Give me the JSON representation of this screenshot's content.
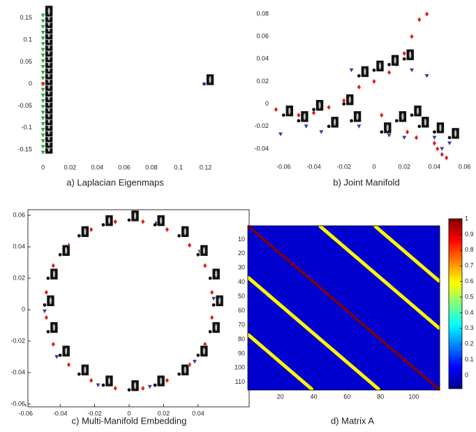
{
  "chart_data": [
    {
      "type": "scatter",
      "title": "a) Laplacian Eigenmaps",
      "xlim": [
        -0.006,
        0.128
      ],
      "ylim": [
        -0.175,
        0.175
      ],
      "xticks": [
        0,
        0.02,
        0.04,
        0.06,
        0.08,
        0.1,
        0.12
      ],
      "yticks": [
        -0.15,
        -0.1,
        -0.05,
        0,
        0.05,
        0.1,
        0.15
      ],
      "box": false,
      "series": [
        {
          "color": "#1faa3c",
          "marker": "triangle-down",
          "thumbnails": true,
          "x": [
            0,
            0,
            0,
            0,
            0,
            0,
            0,
            0,
            0,
            0,
            0,
            0,
            0,
            0,
            0,
            0,
            0,
            0,
            0,
            0,
            0,
            0,
            0,
            0,
            0
          ],
          "values": [
            -0.156,
            -0.143,
            -0.13,
            -0.117,
            -0.104,
            -0.091,
            -0.078,
            -0.065,
            -0.052,
            -0.039,
            -0.026,
            -0.013,
            0,
            0.013,
            0.026,
            0.039,
            0.052,
            0.065,
            0.078,
            0.091,
            0.104,
            0.117,
            0.13,
            0.143,
            0.156
          ]
        },
        {
          "color": "#e02020",
          "marker": "diamond",
          "x": [
            0
          ],
          "values": [
            0
          ]
        },
        {
          "color": "#303090",
          "marker": "dot",
          "thumbnails": true,
          "x": [
            0.119
          ],
          "values": [
            0
          ]
        }
      ]
    },
    {
      "type": "scatter",
      "title": "b) Joint Manifold",
      "xlim": [
        -0.068,
        0.062
      ],
      "ylim": [
        -0.05,
        0.09
      ],
      "xticks": [
        -0.06,
        -0.04,
        -0.02,
        0,
        0.02,
        0.04,
        0.06
      ],
      "yticks": [
        -0.04,
        -0.02,
        0,
        0.02,
        0.04,
        0.06,
        0.08
      ],
      "box": false,
      "series": [
        {
          "color": "#e02020",
          "marker": "diamond",
          "x": [
            -0.065,
            -0.05,
            -0.04,
            -0.03,
            -0.02,
            -0.01,
            0,
            0.01,
            0.015,
            0.02,
            0.025,
            0.03,
            0.035,
            0.04,
            0.045,
            0.042,
            0.048,
            0.028,
            0.022,
            0.005
          ],
          "values": [
            -0.005,
            -0.01,
            -0.008,
            -0.003,
            0.003,
            0.015,
            0.02,
            0.028,
            0.035,
            0.045,
            0.06,
            0.075,
            0.08,
            -0.035,
            -0.045,
            -0.04,
            -0.048,
            -0.03,
            -0.025,
            -0.01
          ]
        },
        {
          "color": "#3a3aa0",
          "marker": "triangle-down",
          "x": [
            -0.062,
            -0.045,
            -0.035,
            -0.025,
            -0.015,
            -0.005,
            0.005,
            0.015,
            0.025,
            0.035,
            0.04,
            0.045,
            0.05,
            0.02,
            0.01,
            -0.01
          ],
          "values": [
            -0.027,
            -0.02,
            -0.025,
            -0.018,
            0.03,
            0.028,
            0.035,
            0.038,
            0.03,
            0.025,
            -0.03,
            -0.04,
            -0.035,
            -0.03,
            -0.028,
            -0.02
          ]
        },
        {
          "color": "#111111",
          "marker": "dot",
          "thumbnails": true,
          "x": [
            -0.06,
            -0.05,
            -0.04,
            -0.03,
            -0.02,
            -0.01,
            0,
            0.01,
            0.02,
            0.03,
            0.04,
            0.05,
            0.015,
            0.025,
            -0.015,
            0.005
          ],
          "values": [
            -0.01,
            -0.015,
            -0.005,
            -0.02,
            0,
            0.025,
            0.03,
            0.035,
            0.04,
            -0.02,
            -0.025,
            -0.03,
            -0.015,
            -0.01,
            -0.015,
            -0.025
          ]
        }
      ]
    },
    {
      "type": "scatter",
      "title": "c) Multi-Manifold Embedding",
      "xlim": [
        -0.0587,
        0.0696
      ],
      "ylim": [
        -0.0618,
        0.0636
      ],
      "xticks": [
        -0.06,
        -0.04,
        -0.02,
        0,
        0.02,
        0.04
      ],
      "yticks": [
        -0.06,
        -0.04,
        -0.02,
        0,
        0.02,
        0.04,
        0.06
      ],
      "box": true,
      "series": [
        {
          "color": "#e02020",
          "marker": "diamond",
          "x": [
            0.048,
            0.044,
            0.035,
            0.022,
            0.008,
            -0.008,
            -0.022,
            -0.035,
            -0.044,
            -0.048,
            -0.048,
            -0.044,
            -0.035,
            -0.022,
            -0.008,
            0.008,
            0.022,
            0.035,
            0.044,
            0.048
          ],
          "values": [
            0.011,
            0.028,
            0.041,
            0.051,
            0.056,
            0.056,
            0.051,
            0.041,
            0.028,
            0.011,
            -0.005,
            -0.022,
            -0.035,
            -0.045,
            -0.05,
            -0.05,
            -0.045,
            -0.035,
            -0.022,
            -0.005
          ]
        },
        {
          "color": "#3a3aa0",
          "marker": "triangle-down",
          "x": [
            0.049,
            0.041,
            0.016,
            -0.012,
            -0.038,
            -0.049,
            -0.042,
            -0.018,
            0.012,
            0.038
          ],
          "values": [
            0.007,
            0.037,
            0.055,
            0.055,
            0.038,
            -0.001,
            -0.03,
            -0.048,
            -0.049,
            -0.033
          ]
        },
        {
          "color": "#111111",
          "marker": "dot",
          "thumbnails": true,
          "x": [
            0.049,
            0.047,
            0.04,
            0.029,
            0.015,
            0,
            -0.015,
            -0.029,
            -0.04,
            -0.047,
            -0.049,
            -0.047,
            -0.04,
            -0.029,
            -0.015,
            0,
            0.015,
            0.029,
            0.04,
            0.047
          ],
          "values": [
            0.003,
            0.02,
            0.035,
            0.047,
            0.054,
            0.057,
            0.054,
            0.047,
            0.035,
            0.02,
            0.003,
            -0.014,
            -0.029,
            -0.041,
            -0.048,
            -0.051,
            -0.048,
            -0.041,
            -0.029,
            -0.014
          ]
        }
      ]
    },
    {
      "type": "heatmap",
      "title": "d) Matrix A",
      "xlim": [
        0.5,
        115.5
      ],
      "ylim": [
        115.5,
        0.5
      ],
      "xticks": [
        20,
        40,
        60,
        80,
        100
      ],
      "yticks": [
        10,
        20,
        30,
        40,
        50,
        60,
        70,
        80,
        90,
        100,
        110
      ],
      "box": true,
      "background_value": 0,
      "diagonals": [
        {
          "from": [
            1,
            1
          ],
          "to": [
            115,
            115
          ],
          "value": 1
        },
        {
          "from": [
            44,
            1
          ],
          "to": [
            115,
            72
          ],
          "value": 0.6
        },
        {
          "from": [
            77,
            1
          ],
          "to": [
            115,
            39
          ],
          "value": 0.6
        },
        {
          "from": [
            1,
            37
          ],
          "to": [
            79,
            115
          ],
          "value": 0.6
        },
        {
          "from": [
            1,
            77
          ],
          "to": [
            39,
            115
          ],
          "value": 0.6
        }
      ],
      "clim": [
        -0.085,
        1
      ],
      "colorbar_ticks": [
        0,
        0.1,
        0.2,
        0.3,
        0.4,
        0.5,
        0.6,
        0.7,
        0.8,
        0.9,
        1
      ]
    }
  ]
}
